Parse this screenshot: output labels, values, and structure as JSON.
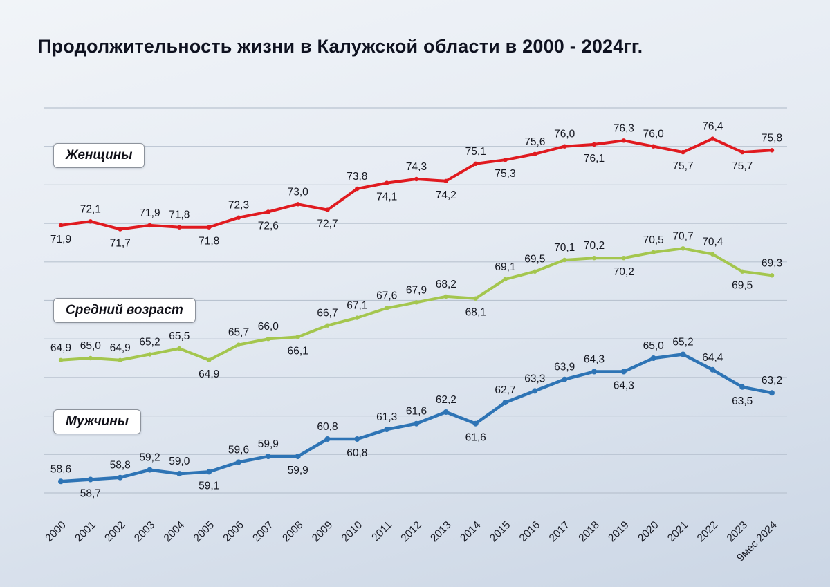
{
  "title": "Продолжительность жизни в Калужской области в 2000 - 2024гг.",
  "legend": {
    "women": "Женщины",
    "average": "Средний возраст",
    "men": "Мужчины"
  },
  "chart_data": {
    "type": "line",
    "title": "Продолжительность жизни в Калужской области в 2000 - 2024гг.",
    "x": [
      "2000",
      "2001",
      "2002",
      "2003",
      "2004",
      "2005",
      "2006",
      "2007",
      "2008",
      "2009",
      "2010",
      "2011",
      "2012",
      "2013",
      "2014",
      "2015",
      "2016",
      "2017",
      "2018",
      "2019",
      "2020",
      "2021",
      "2022",
      "2023",
      "9мес.2024"
    ],
    "series": [
      {
        "name": "Женщины",
        "color": "#e01a1f",
        "values": [
          71.9,
          72.1,
          71.7,
          71.9,
          71.8,
          71.8,
          72.3,
          72.6,
          73.0,
          72.7,
          73.8,
          74.1,
          74.3,
          74.2,
          75.1,
          75.3,
          75.6,
          76.0,
          76.1,
          76.3,
          76.0,
          75.7,
          76.4,
          75.7,
          75.8
        ],
        "label_side": [
          "b",
          "a",
          "b",
          "a",
          "a",
          "b",
          "a",
          "b",
          "a",
          "b",
          "a",
          "b",
          "a",
          "b",
          "a",
          "b",
          "a",
          "a",
          "b",
          "a",
          "a",
          "b",
          "a",
          "b",
          "a"
        ]
      },
      {
        "name": "Средний возраст",
        "color": "#a4c64e",
        "values": [
          64.9,
          65.0,
          64.9,
          65.2,
          65.5,
          64.9,
          65.7,
          66.0,
          66.1,
          66.7,
          67.1,
          67.6,
          67.9,
          68.2,
          68.1,
          69.1,
          69.5,
          70.1,
          70.2,
          70.2,
          70.5,
          70.7,
          70.4,
          69.5,
          69.3
        ],
        "label_side": [
          "a",
          "a",
          "a",
          "a",
          "a",
          "b",
          "a",
          "a",
          "b",
          "a",
          "a",
          "a",
          "a",
          "a",
          "b",
          "a",
          "a",
          "a",
          "a",
          "b",
          "a",
          "a",
          "a",
          "b",
          "a"
        ]
      },
      {
        "name": "Мужчины",
        "color": "#2e74b5",
        "values": [
          58.6,
          58.7,
          58.8,
          59.2,
          59.0,
          59.1,
          59.6,
          59.9,
          59.9,
          60.8,
          60.8,
          61.3,
          61.6,
          62.2,
          61.6,
          62.7,
          63.3,
          63.9,
          64.3,
          64.3,
          65.0,
          65.2,
          64.4,
          63.5,
          63.2
        ],
        "label_side": [
          "a",
          "b",
          "a",
          "a",
          "a",
          "b",
          "a",
          "a",
          "b",
          "a",
          "b",
          "a",
          "a",
          "a",
          "b",
          "a",
          "a",
          "a",
          "a",
          "b",
          "a",
          "a",
          "a",
          "b",
          "a"
        ]
      }
    ],
    "ylim": [
      58,
      78
    ],
    "gridline_step": 2,
    "grid": true,
    "decimal_separator": ",",
    "xlabel": "",
    "ylabel": "",
    "legend_position": "inline-left",
    "x_label_rotation": -45
  },
  "colors": {
    "background_top": "#f1f4f8",
    "background_bottom": "#cbd6e5",
    "gridline": "#b9c3d0",
    "title_text": "#0f1220",
    "label_text": "#14161f"
  }
}
